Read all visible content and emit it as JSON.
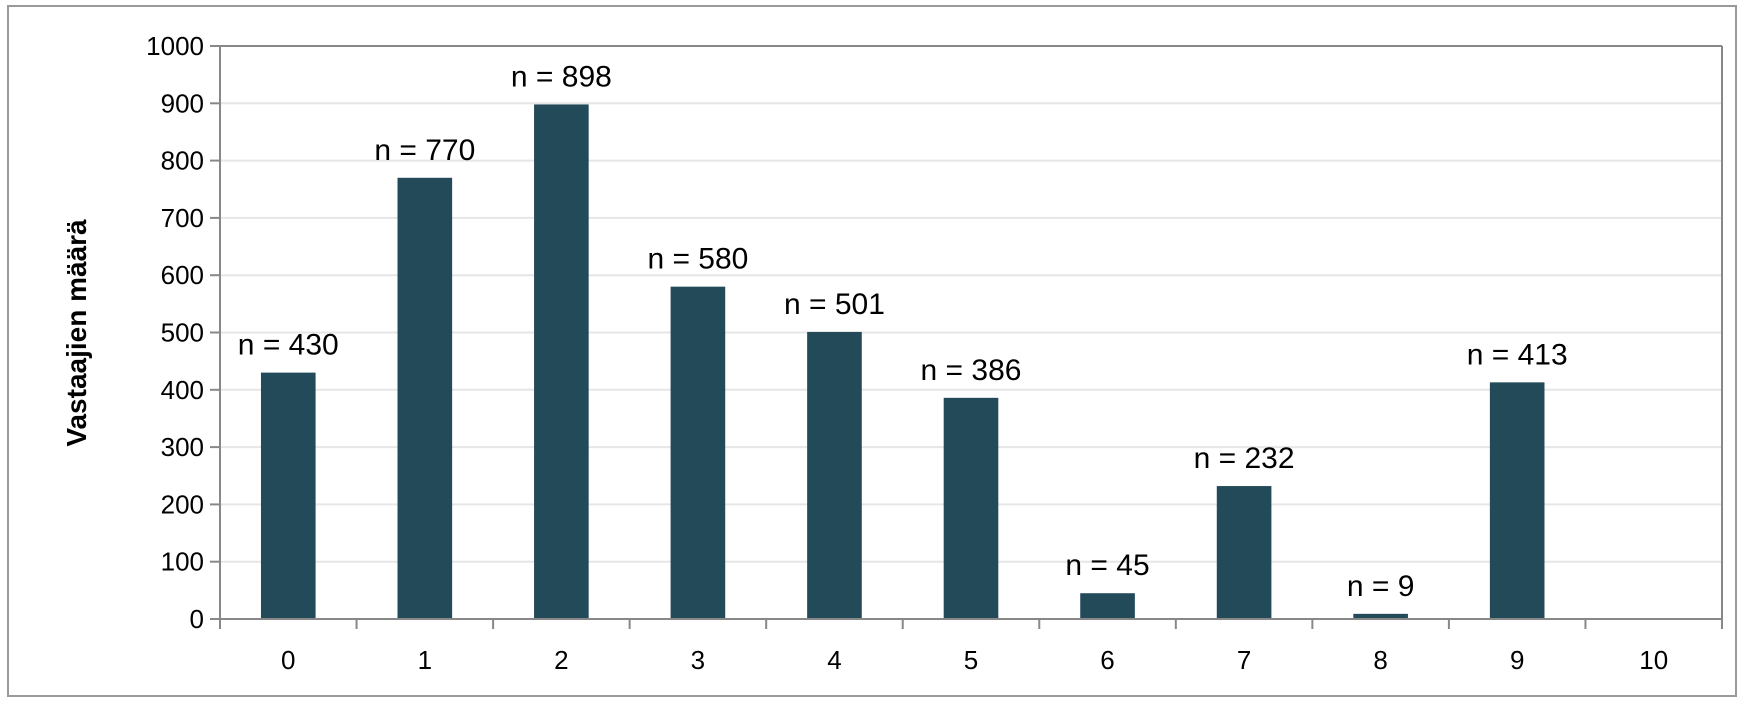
{
  "chart_data": {
    "type": "bar",
    "categories": [
      "0",
      "1",
      "2",
      "3",
      "4",
      "5",
      "6",
      "7",
      "8",
      "9",
      "10"
    ],
    "values": [
      430,
      770,
      898,
      580,
      501,
      386,
      45,
      232,
      9,
      413,
      null
    ],
    "data_labels": [
      "n = 430",
      "n = 770",
      "n = 898",
      "n = 580",
      "n = 501",
      "n = 386",
      "n = 45",
      "n = 232",
      "n = 9",
      "n = 413",
      ""
    ],
    "title": "",
    "xlabel": "",
    "ylabel": "Vastaajien määrä",
    "ylim": [
      0,
      1000
    ],
    "yticks": [
      "0",
      "100",
      "200",
      "300",
      "400",
      "500",
      "600",
      "700",
      "800",
      "900",
      "1000"
    ],
    "grid": true,
    "legend": "none",
    "bar_color": "#234a58",
    "grid_color": "#e6e6e6",
    "axis_color": "#888888"
  }
}
